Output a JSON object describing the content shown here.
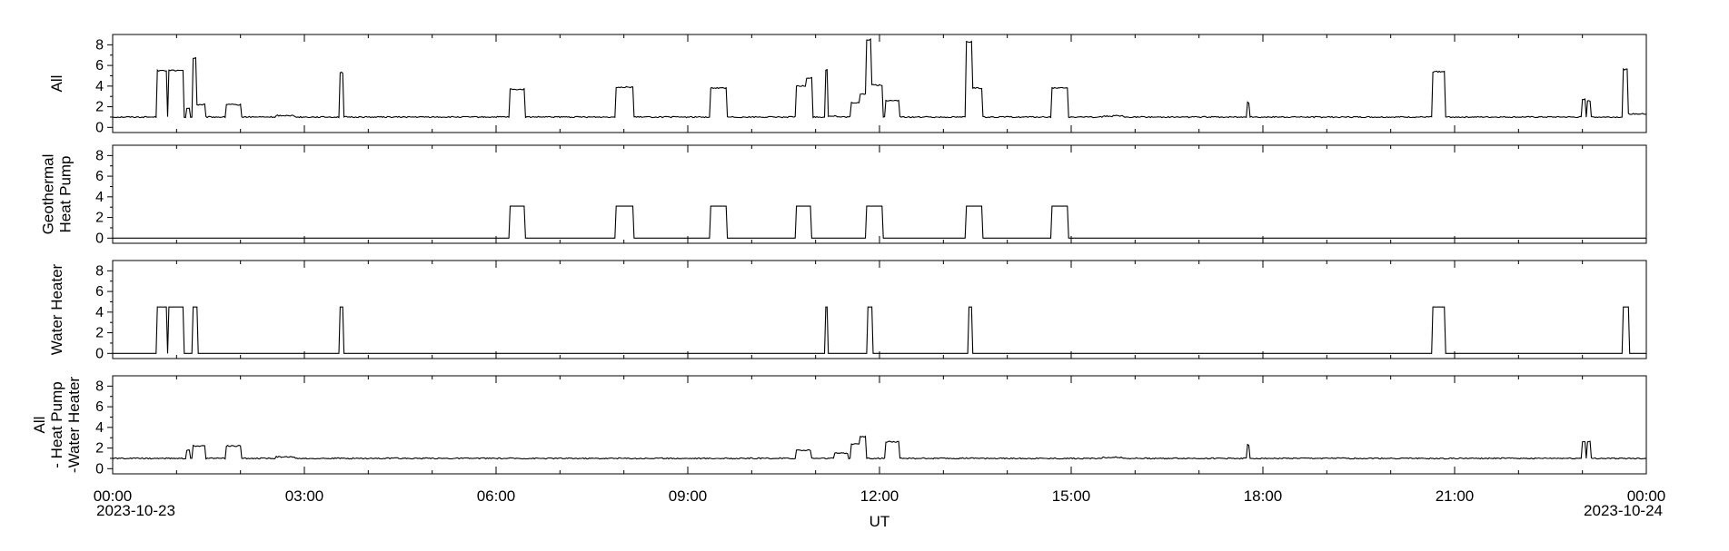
{
  "chart_data": {
    "type": "line",
    "xlabel": "UT",
    "x_tick_labels": [
      "00:00",
      "03:00",
      "06:00",
      "09:00",
      "12:00",
      "15:00",
      "18:00",
      "21:00",
      "00:00"
    ],
    "x_date_start": "2023-10-23",
    "x_date_end": "2023-10-24",
    "x_range_hours": [
      0,
      24
    ],
    "y_ticks": [
      0,
      2,
      4,
      6,
      8
    ],
    "ylim": [
      -0.5,
      9
    ],
    "line_color": "#000000",
    "panels": [
      {
        "ylabel": [
          "All"
        ],
        "baseline": 1.0,
        "noise": 0.12,
        "segments": [
          [
            0.7,
            0.85,
            5.5
          ],
          [
            0.88,
            1.1,
            5.5
          ],
          [
            1.15,
            1.2,
            1.8
          ],
          [
            1.25,
            1.3,
            6.7
          ],
          [
            1.32,
            1.45,
            2.2
          ],
          [
            1.78,
            2.0,
            2.2
          ],
          [
            2.55,
            2.85,
            1.15
          ],
          [
            3.55,
            3.6,
            5.3
          ],
          [
            6.22,
            6.45,
            3.7
          ],
          [
            7.88,
            8.15,
            3.9
          ],
          [
            9.35,
            9.6,
            3.8
          ],
          [
            10.7,
            10.92,
            4.0
          ],
          [
            10.85,
            10.95,
            4.8
          ],
          [
            11.15,
            11.2,
            5.6
          ],
          [
            11.2,
            11.32,
            1.1
          ],
          [
            11.55,
            11.75,
            2.4
          ],
          [
            11.7,
            11.78,
            3.2
          ],
          [
            11.8,
            11.88,
            8.5
          ],
          [
            11.88,
            12.05,
            4.1
          ],
          [
            12.1,
            12.3,
            2.6
          ],
          [
            13.35,
            13.45,
            8.3
          ],
          [
            13.45,
            13.6,
            3.8
          ],
          [
            14.7,
            14.95,
            3.8
          ],
          [
            15.5,
            15.8,
            1.1
          ],
          [
            17.75,
            17.78,
            2.4
          ],
          [
            20.65,
            20.85,
            5.4
          ],
          [
            23.0,
            23.05,
            2.7
          ],
          [
            23.08,
            23.12,
            2.6
          ],
          [
            23.63,
            23.72,
            5.6
          ],
          [
            23.72,
            24.0,
            1.3
          ]
        ]
      },
      {
        "ylabel": [
          "Geothermal",
          "Heat Pump"
        ],
        "baseline": 0.0,
        "noise": 0.0,
        "segments": [
          [
            6.22,
            6.45,
            3.1
          ],
          [
            7.88,
            8.15,
            3.1
          ],
          [
            9.35,
            9.6,
            3.1
          ],
          [
            10.7,
            10.92,
            3.1
          ],
          [
            11.8,
            12.05,
            3.1
          ],
          [
            13.35,
            13.6,
            3.1
          ],
          [
            14.7,
            14.95,
            3.1
          ]
        ]
      },
      {
        "ylabel": [
          "Water Heater"
        ],
        "baseline": 0.0,
        "noise": 0.0,
        "segments": [
          [
            0.7,
            0.85,
            4.5
          ],
          [
            0.88,
            1.1,
            4.5
          ],
          [
            1.25,
            1.32,
            4.5
          ],
          [
            3.55,
            3.6,
            4.5
          ],
          [
            11.15,
            11.2,
            4.5
          ],
          [
            11.82,
            11.88,
            4.5
          ],
          [
            13.4,
            13.45,
            4.5
          ],
          [
            20.65,
            20.85,
            4.5
          ],
          [
            23.63,
            23.72,
            4.5
          ]
        ]
      },
      {
        "ylabel": [
          "All",
          "- Heat Pump",
          "-Water Heater"
        ],
        "baseline": 1.0,
        "noise": 0.12,
        "segments": [
          [
            1.15,
            1.2,
            1.8
          ],
          [
            1.25,
            1.45,
            2.2
          ],
          [
            1.78,
            2.0,
            2.2
          ],
          [
            2.55,
            2.85,
            1.15
          ],
          [
            10.7,
            10.92,
            1.8
          ],
          [
            11.3,
            11.5,
            1.5
          ],
          [
            11.55,
            11.75,
            2.4
          ],
          [
            11.7,
            11.78,
            3.1
          ],
          [
            12.1,
            12.3,
            2.6
          ],
          [
            15.5,
            15.8,
            1.1
          ],
          [
            17.75,
            17.78,
            2.3
          ],
          [
            23.0,
            23.05,
            2.6
          ],
          [
            23.08,
            23.12,
            2.6
          ]
        ]
      }
    ]
  }
}
